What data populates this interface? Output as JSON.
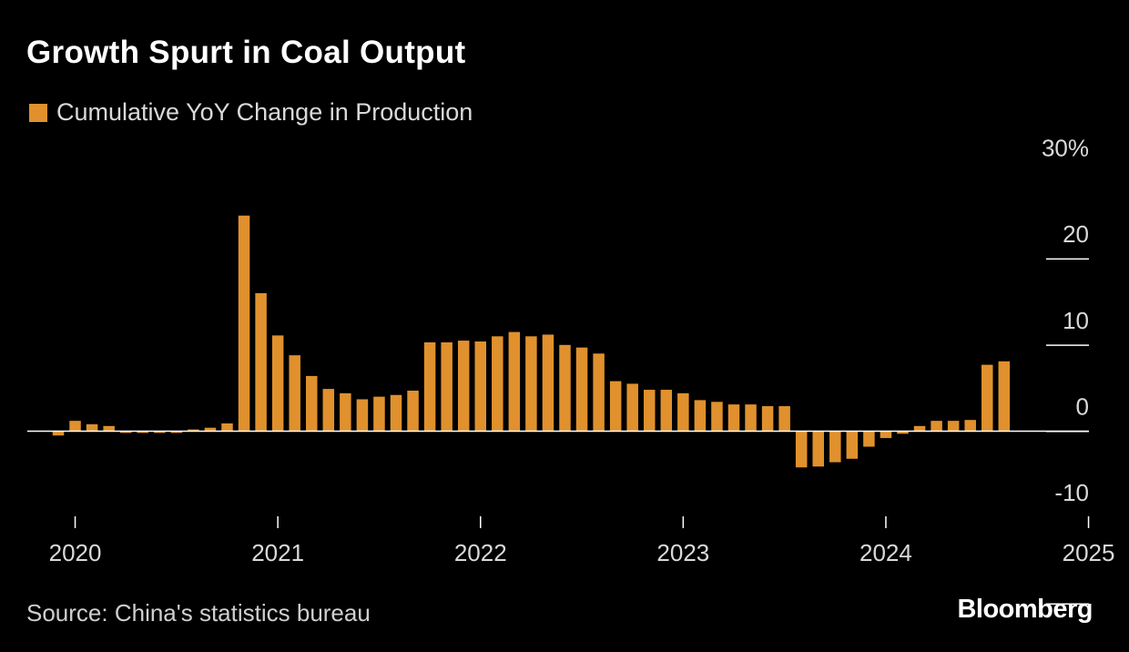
{
  "title": "Growth Spurt in Coal Output",
  "source": "Source: China's statistics bureau",
  "brand": "Bloomberg",
  "colors": {
    "background": "#000000",
    "bar": "#e0912d",
    "axis": "#ffffff",
    "text": "#d9d9d9"
  },
  "chart_data": {
    "type": "bar",
    "title": "Growth Spurt in Coal Output",
    "legend": "top-left",
    "grid": false,
    "ylim": [
      -10,
      30
    ],
    "yticks": [
      -10,
      0,
      10,
      20,
      30
    ],
    "ytick_labels": [
      "-10",
      "0",
      "10",
      "20",
      "30%"
    ],
    "x_start": "2019-12",
    "xticks": [
      "2020",
      "2021",
      "2022",
      "2023",
      "2024",
      "2025"
    ],
    "series": [
      {
        "name": "Cumulative YoY Change in Production",
        "values": [
          -0.5,
          1.2,
          0.8,
          0.6,
          -0.2,
          -0.2,
          -0.2,
          -0.2,
          0.2,
          0.4,
          0.9,
          25.0,
          16.0,
          11.1,
          8.8,
          6.4,
          4.9,
          4.4,
          3.7,
          4.0,
          4.2,
          4.7,
          10.3,
          10.3,
          10.5,
          10.4,
          11.0,
          11.5,
          11.0,
          11.2,
          10.0,
          9.7,
          9.0,
          5.8,
          5.5,
          4.8,
          4.8,
          4.4,
          3.6,
          3.4,
          3.1,
          3.1,
          2.9,
          2.9,
          -4.2,
          -4.1,
          -3.6,
          -3.2,
          -1.8,
          -0.8,
          -0.3,
          0.6,
          1.2,
          1.2,
          1.3,
          7.7,
          8.1
        ]
      }
    ]
  }
}
